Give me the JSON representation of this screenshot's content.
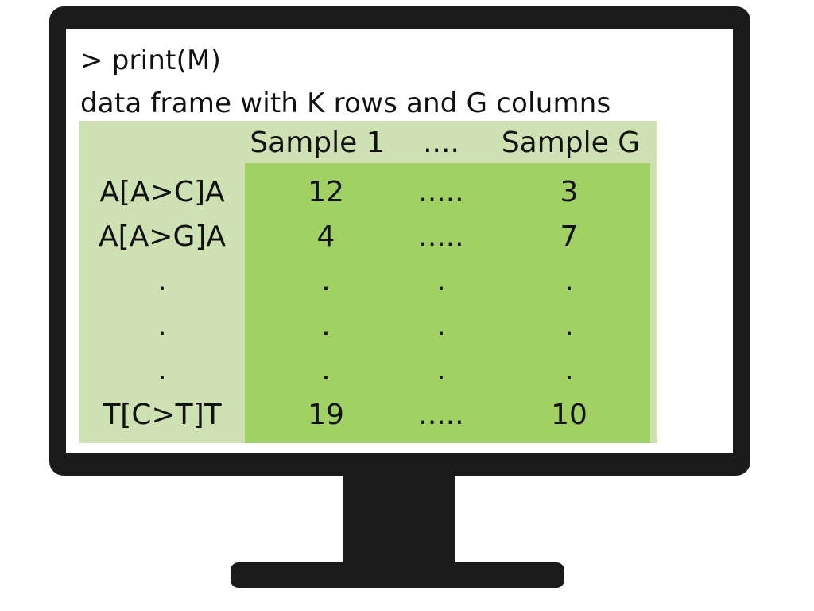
{
  "console": {
    "command": "> print(M)",
    "description": "data frame with K rows and G columns"
  },
  "table": {
    "header": [
      "Sample 1",
      "....",
      "Sample G"
    ],
    "rows": [
      {
        "label": "A[A>C]A",
        "c1": "12",
        "c2": ".....",
        "c3": "3"
      },
      {
        "label": "A[A>G]A",
        "c1": "4",
        "c2": ".....",
        "c3": "7"
      },
      {
        "label": ".",
        "c1": ".",
        "c2": ".",
        "c3": "."
      },
      {
        "label": ".",
        "c1": ".",
        "c2": ".",
        "c3": "."
      },
      {
        "label": ".",
        "c1": ".",
        "c2": ".",
        "c3": "."
      },
      {
        "label": "T[C>T]T",
        "c1": "19",
        "c2": ".....",
        "c3": "10"
      }
    ]
  },
  "colors": {
    "monitor": "#1b1b1b",
    "table_light": "#cde1b3",
    "table_dark": "#a2d163"
  }
}
